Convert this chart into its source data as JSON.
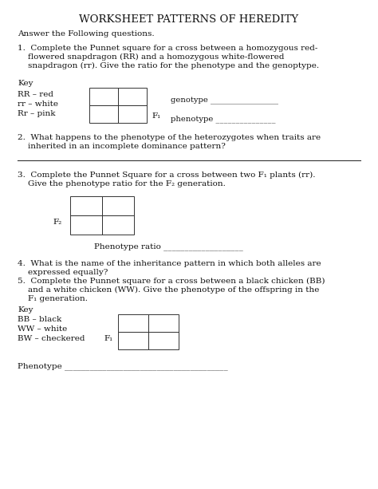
{
  "title": "WORKSHEET PATTERNS OF HEREDITY",
  "bg_color": "#ffffff",
  "text_color": "#111111",
  "title_fontsize": 9.5,
  "body_fontsize": 7.5,
  "small_fontsize": 7.2,
  "intro": "Answer the Following questions.",
  "q1_line1": "1.  Complete the Punnet square for a cross between a homozygous red-",
  "q1_line2": "    flowered snapdragon (RR) and a homozygous white-flowered",
  "q1_line3": "    snapdragon (rr). Give the ratio for the phenotype and the genoptype.",
  "key1_label": "Key",
  "key1_lines": [
    "RR – red",
    "rr – white",
    "Rr – pink"
  ],
  "f1_label": "F₁",
  "genotype_label": "genotype _________________",
  "phenotype_label": "phenotype _______________",
  "q2_line1": "2.  What happens to the phenotype of the heterozygotes when traits are",
  "q2_line2": "    inherited in an incomplete dominance pattern?",
  "q3_line1": "3.  Complete the Punnet Square for a cross between two F₁ plants (rr).",
  "q3_line2": "    Give the phenotype ratio for the F₂ generation.",
  "f2_label": "F₂",
  "phenotype_ratio_label": "Phenotype ratio ___________________",
  "q4_line1": "4.  What is the name of the inheritance pattern in which both alleles are",
  "q4_line2": "    expressed equally?",
  "q5_line1": "5.  Complete the Punnet square for a cross between a black chicken (BB)",
  "q5_line2": "    and a white chicken (WW). Give the phenotype of the offspring in the",
  "q5_line3": "    F₁ generation.",
  "key2_label": "Key",
  "key2_lines": [
    "BB – black",
    "WW – white",
    "BW – checkered"
  ],
  "f1_label2": "F₁",
  "phenotype2_label": "Phenotype _______________________________________"
}
